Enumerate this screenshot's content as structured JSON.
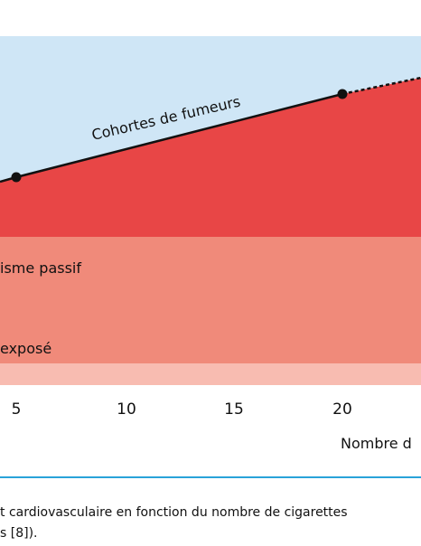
{
  "figure": {
    "curve_label": "Cohortes de fumeurs",
    "band_labels": [
      "isme passif",
      "exposé"
    ],
    "x_ticks": [
      "5",
      "10",
      "15",
      "20"
    ],
    "x_axis_label": "Nombre d",
    "caption": [
      "t cardiovasculaire en fonction du nombre de cigarettes",
      "s [8])."
    ]
  }
}
